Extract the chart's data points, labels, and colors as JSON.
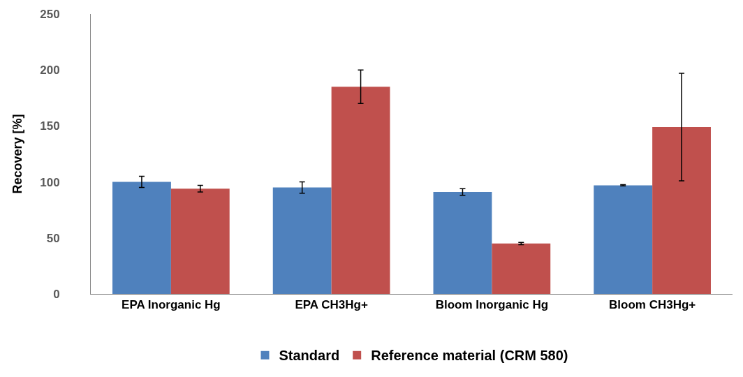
{
  "chart_data": {
    "type": "bar",
    "ylabel": "Recovery [%]",
    "categories": [
      "EPA Inorganic Hg",
      "EPA CH3Hg+",
      "Bloom Inorganic Hg",
      "Bloom CH3Hg+"
    ],
    "series": [
      {
        "name": "Standard",
        "color": "#4f81bd",
        "values": [
          100,
          95,
          91,
          97
        ],
        "errors": [
          5,
          5,
          3,
          0.5
        ]
      },
      {
        "name": "Reference material (CRM 580)",
        "color": "#c0504d",
        "values": [
          94,
          185,
          45,
          149
        ],
        "errors": [
          3,
          15,
          1,
          48
        ]
      }
    ],
    "ylim": [
      0,
      250
    ],
    "yticks": [
      0,
      50,
      100,
      150,
      200,
      250
    ],
    "grid": false,
    "legend": "bottom"
  }
}
